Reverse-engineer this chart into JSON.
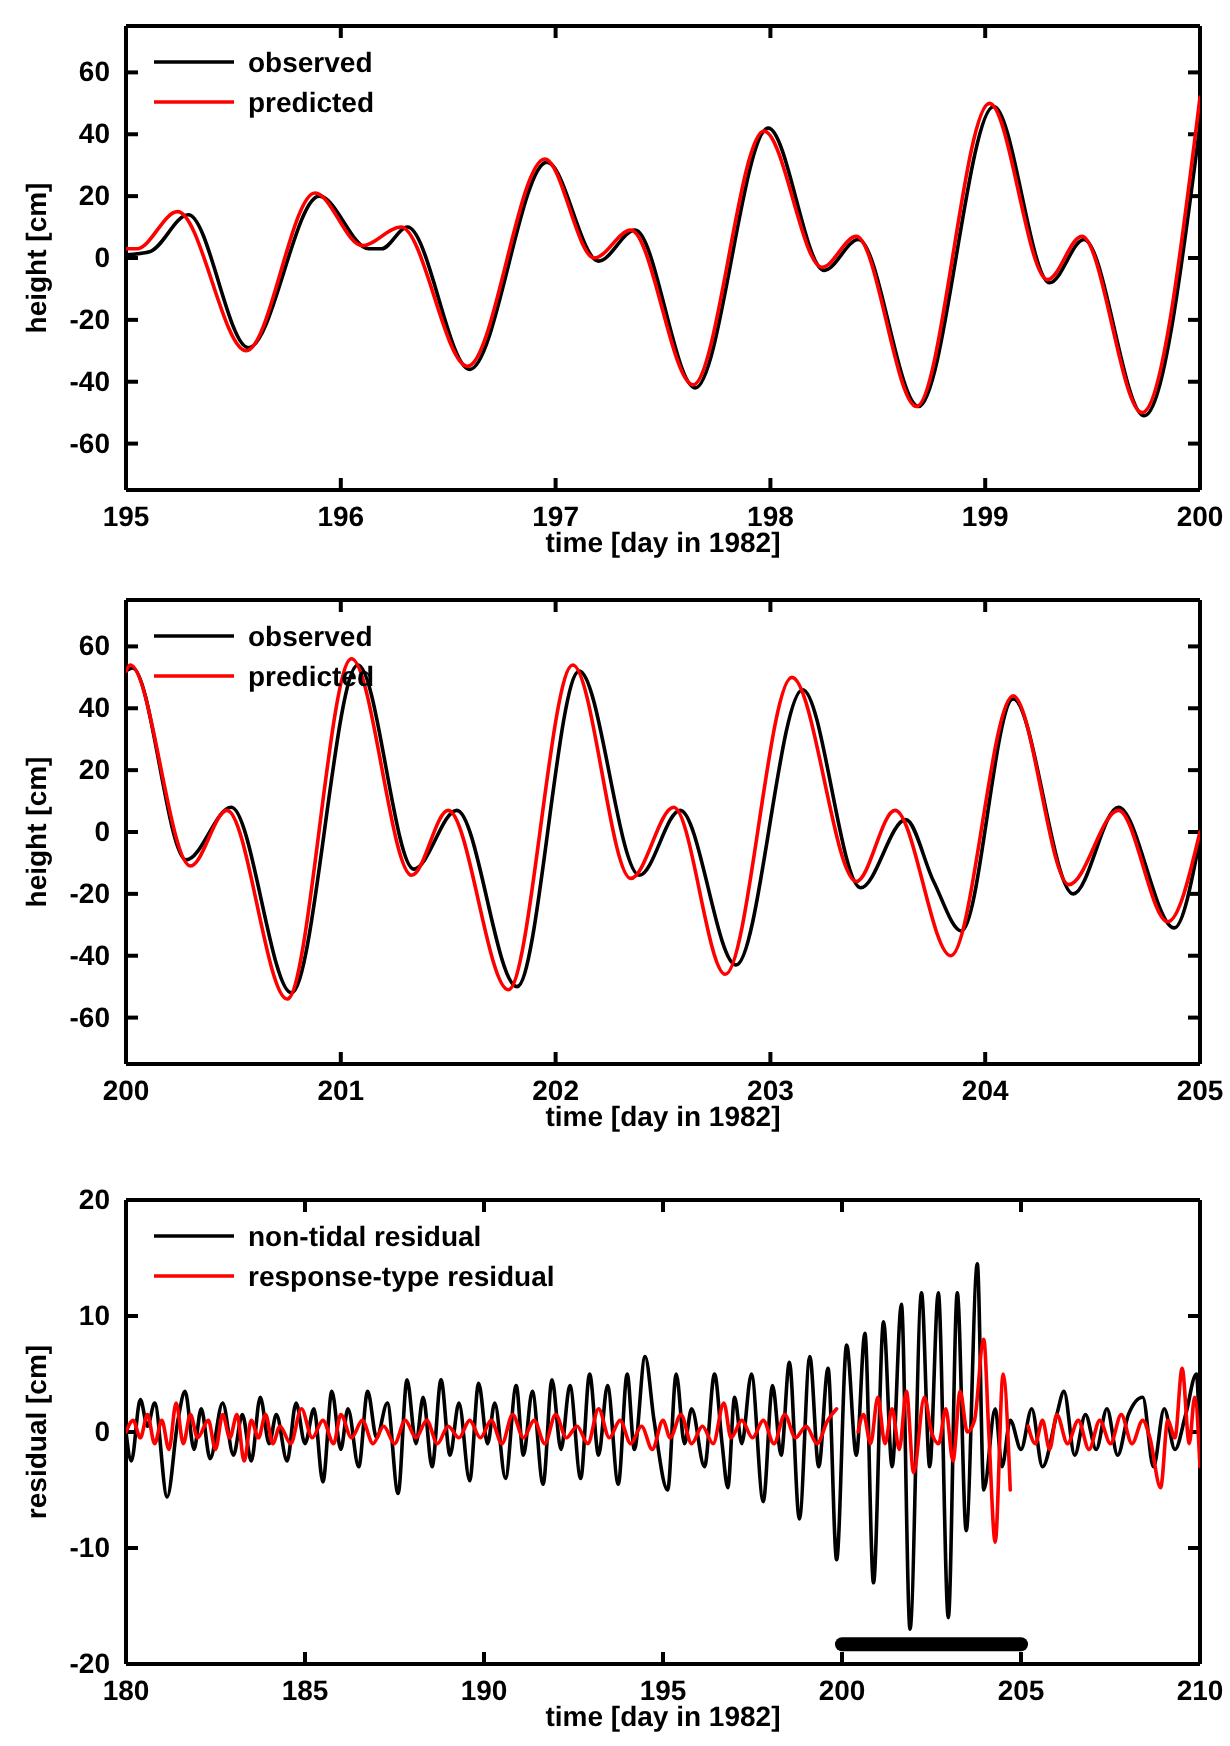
{
  "chart_data": [
    {
      "type": "line",
      "xlabel": "time [day in 1982]",
      "ylabel": "height [cm]",
      "xlim": [
        195,
        200
      ],
      "xticks": [
        195,
        196,
        197,
        198,
        199,
        200
      ],
      "ylim": [
        -75,
        75
      ],
      "yticks": [
        -60,
        -40,
        -20,
        0,
        20,
        40,
        60
      ],
      "legend": "top left",
      "grid": false,
      "series": [
        {
          "name": "observed",
          "color": "#000000",
          "x": [
            195,
            195.11,
            195.29,
            195.57,
            195.9,
            196.13,
            196.19,
            196.31,
            196.6,
            196.96,
            197.2,
            197.37,
            197.65,
            197.99,
            198.25,
            198.41,
            198.69,
            199.04,
            199.3,
            199.46,
            199.74,
            200
          ],
          "values": [
            1,
            2,
            14,
            -29,
            20,
            3,
            3,
            10,
            -36,
            31,
            -1,
            9,
            -42,
            42,
            -4,
            6,
            -48,
            49,
            -8,
            6,
            -51,
            43
          ]
        },
        {
          "name": "predicted",
          "color": "#ff0000",
          "x": [
            195,
            195.05,
            195.24,
            195.56,
            195.88,
            196.1,
            196.28,
            196.59,
            196.95,
            197.18,
            197.35,
            197.64,
            197.97,
            198.24,
            198.4,
            198.68,
            199.02,
            199.29,
            199.45,
            199.73,
            200
          ],
          "values": [
            3,
            3,
            15,
            -30,
            21,
            4,
            10,
            -35,
            32,
            0,
            9,
            -41,
            41,
            -3,
            7,
            -48,
            50,
            -7,
            7,
            -50,
            52
          ]
        }
      ]
    },
    {
      "type": "line",
      "xlabel": "time [day in 1982]",
      "ylabel": "height [cm]",
      "xlim": [
        200,
        205
      ],
      "xticks": [
        200,
        201,
        202,
        203,
        204,
        205
      ],
      "ylim": [
        -75,
        75
      ],
      "yticks": [
        -60,
        -40,
        -20,
        0,
        20,
        40,
        60
      ],
      "legend": "top left",
      "grid": false,
      "series": [
        {
          "name": "observed",
          "color": "#000000",
          "x": [
            200,
            200.03,
            200.28,
            200.49,
            200.77,
            201.08,
            201.34,
            201.54,
            201.82,
            202.11,
            202.39,
            202.58,
            202.84,
            203.15,
            203.42,
            203.63,
            203.76,
            203.89,
            204.13,
            204.41,
            204.62,
            204.88,
            205
          ],
          "values": [
            52,
            53,
            -9,
            8,
            -52,
            54,
            -12,
            7,
            -50,
            52,
            -14,
            7,
            -43,
            46,
            -18,
            4,
            -16,
            -32,
            43,
            -20,
            8,
            -31,
            -2
          ]
        },
        {
          "name": "predicted",
          "color": "#ff0000",
          "x": [
            200,
            200.02,
            200.3,
            200.47,
            200.75,
            201.05,
            201.33,
            201.5,
            201.78,
            202.08,
            202.35,
            202.55,
            202.79,
            203.1,
            203.4,
            203.58,
            203.84,
            204.13,
            204.39,
            204.62,
            204.85,
            205
          ],
          "values": [
            52,
            54,
            -11,
            7,
            -54,
            56,
            -14,
            7,
            -51,
            54,
            -15,
            8,
            -46,
            50,
            -16,
            7,
            -40,
            44,
            -17,
            7,
            -29,
            0
          ]
        }
      ]
    },
    {
      "type": "line",
      "xlabel": "time [day in 1982]",
      "ylabel": "residual [cm]",
      "xlim": [
        180,
        210
      ],
      "xticks": [
        180,
        185,
        190,
        195,
        200,
        205,
        210
      ],
      "ylim": [
        -20,
        20
      ],
      "yticks": [
        -20,
        -10,
        0,
        10,
        20
      ],
      "legend": "top left",
      "grid": false,
      "series": [
        {
          "name": "non-tidal residual",
          "color": "#000000",
          "x": [
            180,
            180.15,
            180.4,
            180.6,
            180.8,
            181.15,
            181.45,
            181.65,
            181.9,
            182.1,
            182.35,
            182.7,
            183,
            183.25,
            183.5,
            183.75,
            184,
            184.2,
            184.5,
            184.75,
            185,
            185.25,
            185.5,
            185.75,
            186,
            186.2,
            186.5,
            186.75,
            187,
            187.3,
            187.6,
            187.85,
            188.1,
            188.3,
            188.55,
            188.8,
            189.05,
            189.3,
            189.6,
            189.85,
            190.1,
            190.3,
            190.6,
            190.9,
            191.1,
            191.35,
            191.65,
            191.9,
            192.15,
            192.4,
            192.7,
            192.95,
            193.2,
            193.45,
            193.75,
            194,
            194.2,
            194.5,
            194.75,
            195.13,
            195.37,
            195.6,
            195.8,
            196.16,
            196.44,
            196.65,
            196.81,
            197,
            197.2,
            197.47,
            197.8,
            198.06,
            198.3,
            198.53,
            198.81,
            199.1,
            199.35,
            199.61,
            199.85,
            200.13,
            200.4,
            200.64,
            200.88,
            201.16,
            201.4,
            201.66,
            201.9,
            202.22,
            202.45,
            202.69,
            202.97,
            203.22,
            203.47,
            203.78,
            203.96,
            204.28,
            204.47,
            204.7,
            205,
            205.3,
            205.6,
            206,
            206.2,
            206.5,
            206.8,
            207.1,
            207.4,
            207.7,
            208,
            208.4,
            208.7,
            209,
            209.3,
            209.6,
            209.9,
            210
          ],
          "values": [
            0,
            -2.5,
            2.8,
            0.5,
            2.5,
            -5.6,
            1,
            3.5,
            -1.5,
            2,
            -2.3,
            2.5,
            -2,
            1.5,
            -2.5,
            3,
            -1,
            1.5,
            -2.5,
            2.5,
            -1,
            2,
            -4.3,
            3.5,
            -1.5,
            2,
            -3,
            3.5,
            -0.5,
            2.5,
            -5.3,
            4.5,
            -1,
            3,
            -3,
            4.5,
            -2,
            2.5,
            -4.2,
            4.2,
            -1,
            2.5,
            -4,
            4,
            -2,
            3.5,
            -4.5,
            4.5,
            -1.5,
            4,
            -4,
            5,
            -2,
            4,
            -4.5,
            5,
            -1.5,
            6.5,
            1,
            -5,
            5,
            -1,
            2,
            -3,
            5,
            -1,
            -4.8,
            3,
            -1,
            5,
            -6,
            4,
            -2,
            6,
            -7.5,
            6.5,
            -3,
            5.5,
            -11,
            7.5,
            -2,
            8.5,
            -13,
            9.5,
            -3,
            11,
            -17,
            12,
            -3,
            12,
            -16,
            12,
            -8.5,
            14.5,
            -5,
            2,
            -3,
            1,
            -1.5,
            2,
            -3,
            1.5,
            3.5,
            -2,
            1.5,
            -1.5,
            2,
            -2,
            1.5,
            3,
            -3,
            2,
            -1.5,
            1.5,
            5,
            -2
          ]
        },
        {
          "name": "response-type residual",
          "color": "#ff0000",
          "x": [
            180,
            180.2,
            180.4,
            180.6,
            180.8,
            181,
            181.2,
            181.4,
            181.6,
            181.8,
            182,
            182.3,
            182.5,
            182.7,
            182.9,
            183.1,
            183.3,
            183.5,
            183.7,
            183.9,
            184.1,
            184.3,
            184.6,
            184.9,
            185.2,
            185.5,
            185.8,
            186,
            186.3,
            186.6,
            186.9,
            187.2,
            187.5,
            187.8,
            188.1,
            188.4,
            188.7,
            189,
            189.3,
            189.6,
            189.9,
            190.2,
            190.5,
            190.8,
            191.1,
            191.4,
            191.7,
            192,
            192.3,
            192.6,
            192.9,
            193.2,
            193.5,
            193.8,
            194.1,
            194.4,
            194.7,
            195,
            195.2,
            195.5,
            195.8,
            196.1,
            196.4,
            196.7,
            196.9,
            197.2,
            197.5,
            197.8,
            198.1,
            198.4,
            198.7,
            199,
            199.3,
            199.6,
            199.85,
            199.9,
            200.45,
            200.6,
            200.8,
            201,
            201.2,
            201.4,
            201.6,
            201.8,
            202,
            202.3,
            202.5,
            202.7,
            202.9,
            203.1,
            203.3,
            203.5,
            203.7,
            203.96,
            204.1,
            204.28,
            204.5,
            204.7,
            204.8,
            205.2,
            205.4,
            205.6,
            205.8,
            206,
            206.3,
            206.6,
            206.9,
            207.2,
            207.5,
            207.8,
            208.1,
            208.4,
            208.6,
            208.9,
            209.1,
            209.3,
            209.5,
            209.7,
            209.85,
            210
          ],
          "values": [
            0,
            1,
            -0.5,
            1.5,
            -1,
            1,
            -1.5,
            2.5,
            -1,
            1.5,
            -0.5,
            1,
            -1.5,
            1.5,
            -0.5,
            1.5,
            -2.5,
            1,
            -0.5,
            1.5,
            -1,
            0.5,
            -1,
            2,
            -0.5,
            1,
            -1,
            1.5,
            -0.5,
            1,
            -1,
            0.5,
            -1,
            1,
            -0.5,
            1,
            -1,
            0.5,
            -0.5,
            1,
            -0.5,
            1,
            -1,
            1.5,
            -0.5,
            1,
            -1,
            1.5,
            -0.5,
            0.5,
            -1,
            2,
            -0.5,
            1,
            -1,
            0.5,
            -1.5,
            1,
            -0.5,
            1.5,
            -1,
            0.5,
            -1,
            2.5,
            -0.5,
            1,
            -0.5,
            1,
            -1,
            1.5,
            -0.5,
            0.5,
            -1,
            1,
            2,
            null,
            0,
            1.5,
            -1,
            3,
            -1,
            2,
            -1.5,
            3.5,
            -3.5,
            3,
            0,
            -1,
            2,
            -2.5,
            3.5,
            0,
            1,
            8,
            0,
            -9.5,
            5,
            -5,
            null,
            0.5,
            -1,
            1,
            -1.5,
            1.5,
            -1,
            1,
            -1.5,
            1,
            -1,
            1.5,
            -1,
            1,
            -0.5,
            -4.8,
            1,
            -0.5,
            5.5,
            -1,
            3,
            -3
          ]
        },
        {
          "color": "#000000",
          "x": [
            200,
            205
          ],
          "values": [
            -18.3,
            -18.3
          ]
        }
      ]
    }
  ]
}
